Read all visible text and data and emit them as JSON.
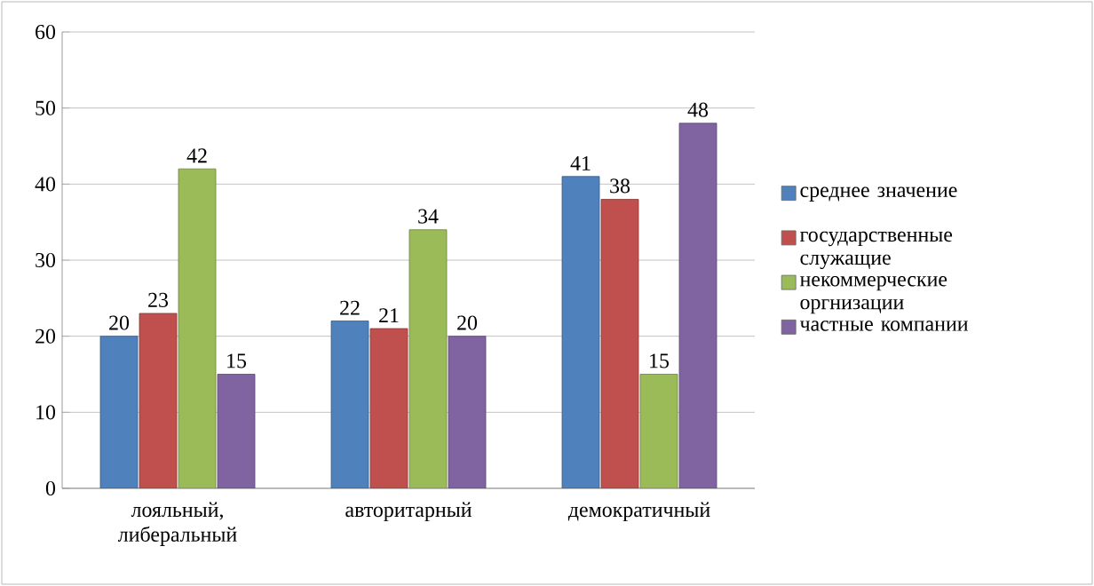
{
  "chart_data": {
    "type": "bar",
    "categories": [
      "лояльный, либеральный",
      "авторитарный",
      "демократичный"
    ],
    "series": [
      {
        "name": "среднее значение",
        "color": "#4f81bd",
        "values": [
          20,
          22,
          41
        ]
      },
      {
        "name": "государственные служащие",
        "color": "#c0504d",
        "values": [
          23,
          21,
          38
        ]
      },
      {
        "name": "некоммерческие оргнизации",
        "color": "#9bbb59",
        "values": [
          42,
          34,
          15
        ]
      },
      {
        "name": "частные компании",
        "color": "#8064a2",
        "values": [
          15,
          20,
          48
        ]
      }
    ],
    "ylim": [
      0,
      60
    ],
    "yticks": [
      0,
      10,
      20,
      30,
      40,
      50,
      60
    ],
    "grid": "y",
    "legend": "right",
    "data_labels": true
  }
}
